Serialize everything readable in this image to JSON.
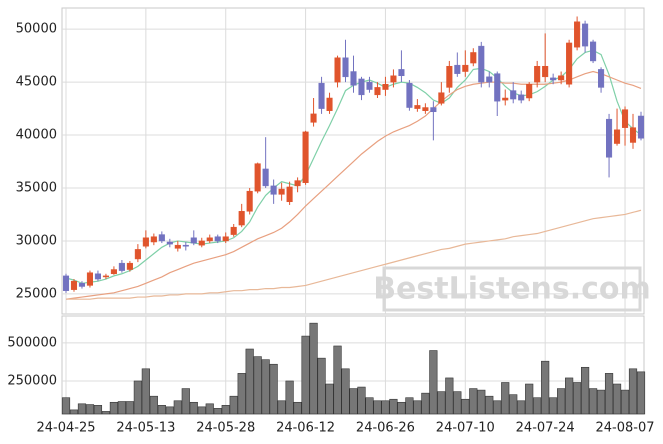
{
  "chart_data": {
    "type": "candlestick",
    "categories": [
      "24-04-25",
      null,
      null,
      null,
      null,
      null,
      null,
      null,
      null,
      null,
      "24-05-13",
      null,
      null,
      null,
      null,
      null,
      null,
      null,
      null,
      null,
      "24-05-28",
      null,
      null,
      null,
      null,
      null,
      null,
      null,
      null,
      null,
      "24-06-12",
      null,
      null,
      null,
      null,
      null,
      null,
      null,
      null,
      null,
      "24-06-26",
      null,
      null,
      null,
      null,
      null,
      null,
      null,
      null,
      null,
      "24-07-10",
      null,
      null,
      null,
      null,
      null,
      null,
      null,
      null,
      null,
      "24-07-24",
      null,
      null,
      null,
      null,
      null,
      null,
      null,
      null,
      null,
      "24-08-07",
      null,
      null
    ],
    "open": [
      26700,
      25400,
      26000,
      25800,
      26900,
      26600,
      26900,
      27900,
      27300,
      28300,
      29500,
      29900,
      30600,
      29900,
      29300,
      29600,
      30300,
      29600,
      30000,
      30400,
      30000,
      30600,
      31500,
      32800,
      34700,
      36800,
      35200,
      34400,
      33700,
      35200,
      35500,
      41200,
      44900,
      42300,
      45000,
      47300,
      46000,
      45300,
      45000,
      43800,
      44300,
      45000,
      46200,
      44900,
      42500,
      42300,
      42600,
      43000,
      44500,
      46600,
      46000,
      46800,
      48400,
      45500,
      45800,
      43300,
      44200,
      43800,
      43500,
      45000,
      45500,
      45400,
      45200,
      44800,
      48300,
      50500,
      48800,
      46200,
      41500,
      39200,
      40700,
      39300,
      41800
    ],
    "high": [
      26900,
      26400,
      26200,
      27200,
      27200,
      26900,
      27600,
      28200,
      28100,
      29700,
      31000,
      30700,
      30900,
      30200,
      30000,
      29900,
      31000,
      30300,
      30600,
      30600,
      30800,
      31600,
      33500,
      35000,
      37400,
      39800,
      35800,
      35500,
      35600,
      36000,
      40400,
      43500,
      45500,
      44000,
      47500,
      49000,
      47500,
      45500,
      45500,
      45000,
      45500,
      46200,
      48000,
      45200,
      43400,
      43000,
      43200,
      45000,
      47000,
      47800,
      48000,
      48200,
      48800,
      46000,
      46000,
      44300,
      45000,
      44200,
      45000,
      47000,
      49600,
      45800,
      46000,
      49000,
      51200,
      50800,
      49000,
      46400,
      42000,
      42500,
      42700,
      42000,
      42200
    ],
    "low": [
      25100,
      25200,
      25500,
      25600,
      26200,
      26400,
      26800,
      27000,
      27100,
      28000,
      29300,
      29600,
      29800,
      29400,
      29000,
      29100,
      29600,
      29400,
      29800,
      29800,
      29800,
      30400,
      31300,
      32500,
      34500,
      35000,
      33500,
      33800,
      33400,
      34600,
      35300,
      40800,
      42000,
      42000,
      44500,
      45000,
      44000,
      43300,
      44000,
      43500,
      43700,
      44500,
      45000,
      42300,
      42200,
      42000,
      39500,
      42800,
      44000,
      45500,
      45500,
      46500,
      44500,
      44500,
      41800,
      42800,
      43000,
      43000,
      43200,
      44500,
      45000,
      44800,
      44800,
      44500,
      48000,
      47800,
      46800,
      44000,
      36000,
      39000,
      39000,
      38700,
      39500
    ],
    "close": [
      25300,
      26200,
      25700,
      27000,
      26400,
      26700,
      27300,
      27200,
      27900,
      29200,
      30300,
      30400,
      30000,
      29700,
      29600,
      29500,
      29800,
      30000,
      30300,
      30000,
      30400,
      31300,
      32800,
      34700,
      37300,
      35200,
      34400,
      34900,
      35100,
      35700,
      40300,
      42000,
      42500,
      43500,
      47300,
      45500,
      44700,
      43800,
      44300,
      44500,
      44800,
      45600,
      45600,
      42600,
      42800,
      42600,
      42200,
      44000,
      46500,
      45800,
      46600,
      47800,
      45000,
      45000,
      43200,
      43500,
      43400,
      43300,
      44800,
      46500,
      46500,
      45200,
      45600,
      48700,
      50700,
      48400,
      47000,
      44500,
      37900,
      40500,
      42400,
      40700,
      39700
    ],
    "up_color": "#e0542c",
    "down_color": "#7272c0",
    "lines": [
      {
        "color": "#7fd0a8",
        "values": [
          26500,
          26300,
          26000,
          26100,
          26200,
          26400,
          26700,
          26900,
          27200,
          27600,
          28200,
          28800,
          29400,
          29800,
          30000,
          29900,
          29800,
          29700,
          29800,
          29900,
          30000,
          30300,
          30900,
          31800,
          33200,
          34300,
          35000,
          35600,
          35400,
          35200,
          36200,
          37800,
          39400,
          40900,
          42500,
          44200,
          44700,
          45000,
          45200,
          44900,
          44500,
          44800,
          45000,
          44900,
          44500,
          44000,
          43300,
          43000,
          43500,
          44500,
          45200,
          46200,
          46300,
          46000,
          45400,
          44600,
          44000,
          43700,
          43800,
          44100,
          44600,
          45200,
          45500,
          46200,
          47200,
          47800,
          48000,
          47600,
          45700,
          43200,
          41300,
          40600,
          40000
        ]
      },
      {
        "color": "#e8a080",
        "values": [
          24500,
          24600,
          24700,
          24800,
          24900,
          25000,
          25100,
          25300,
          25500,
          25700,
          26000,
          26300,
          26600,
          27000,
          27300,
          27600,
          27900,
          28100,
          28300,
          28500,
          28700,
          29000,
          29400,
          29800,
          30200,
          30500,
          30800,
          31200,
          31800,
          32500,
          33300,
          34000,
          34700,
          35400,
          36100,
          36800,
          37500,
          38200,
          38800,
          39400,
          39900,
          40300,
          40600,
          40900,
          41300,
          41800,
          42500,
          43200,
          43800,
          44300,
          44600,
          44800,
          44900,
          45000,
          45000,
          44900,
          44900,
          44800,
          44800,
          44800,
          44800,
          44900,
          45000,
          45200,
          45500,
          45800,
          46000,
          45800,
          45500,
          45200,
          44900,
          44700,
          44400
        ]
      },
      {
        "color": "#e8b898",
        "values": [
          24500,
          24500,
          24500,
          24500,
          24600,
          24600,
          24600,
          24600,
          24600,
          24700,
          24700,
          24800,
          24800,
          24900,
          24900,
          25000,
          25000,
          25000,
          25100,
          25100,
          25200,
          25300,
          25300,
          25400,
          25400,
          25500,
          25500,
          25600,
          25600,
          25700,
          25800,
          26000,
          26200,
          26400,
          26600,
          26800,
          27000,
          27200,
          27400,
          27600,
          27800,
          28000,
          28200,
          28400,
          28600,
          28800,
          29000,
          29200,
          29300,
          29500,
          29700,
          29800,
          29900,
          30000,
          30100,
          30200,
          30400,
          30500,
          30600,
          30700,
          30900,
          31100,
          31300,
          31500,
          31700,
          31900,
          32100,
          32200,
          32300,
          32400,
          32500,
          32700,
          32900
        ]
      }
    ],
    "ylim": [
      23100,
      52000
    ],
    "yticks": [
      25000,
      30000,
      35000,
      40000,
      45000,
      50000
    ],
    "volume": [
      140000,
      60000,
      100000,
      95000,
      90000,
      50000,
      110000,
      115000,
      115000,
      250000,
      330000,
      150000,
      90000,
      80000,
      120000,
      200000,
      110000,
      80000,
      100000,
      70000,
      90000,
      150000,
      300000,
      460000,
      410000,
      390000,
      360000,
      120000,
      250000,
      110000,
      545000,
      630000,
      400000,
      230000,
      480000,
      330000,
      200000,
      210000,
      140000,
      120000,
      120000,
      130000,
      110000,
      140000,
      120000,
      170000,
      450000,
      180000,
      270000,
      180000,
      130000,
      200000,
      190000,
      150000,
      120000,
      240000,
      160000,
      120000,
      230000,
      140000,
      380000,
      140000,
      200000,
      270000,
      240000,
      340000,
      200000,
      190000,
      300000,
      230000,
      190000,
      330000,
      310000
    ],
    "volume_color": "#777777",
    "volume_ylim": [
      33000,
      677000
    ],
    "volume_yticks": [
      250000,
      500000
    ],
    "grid": true,
    "watermark": "BestListens.com"
  }
}
